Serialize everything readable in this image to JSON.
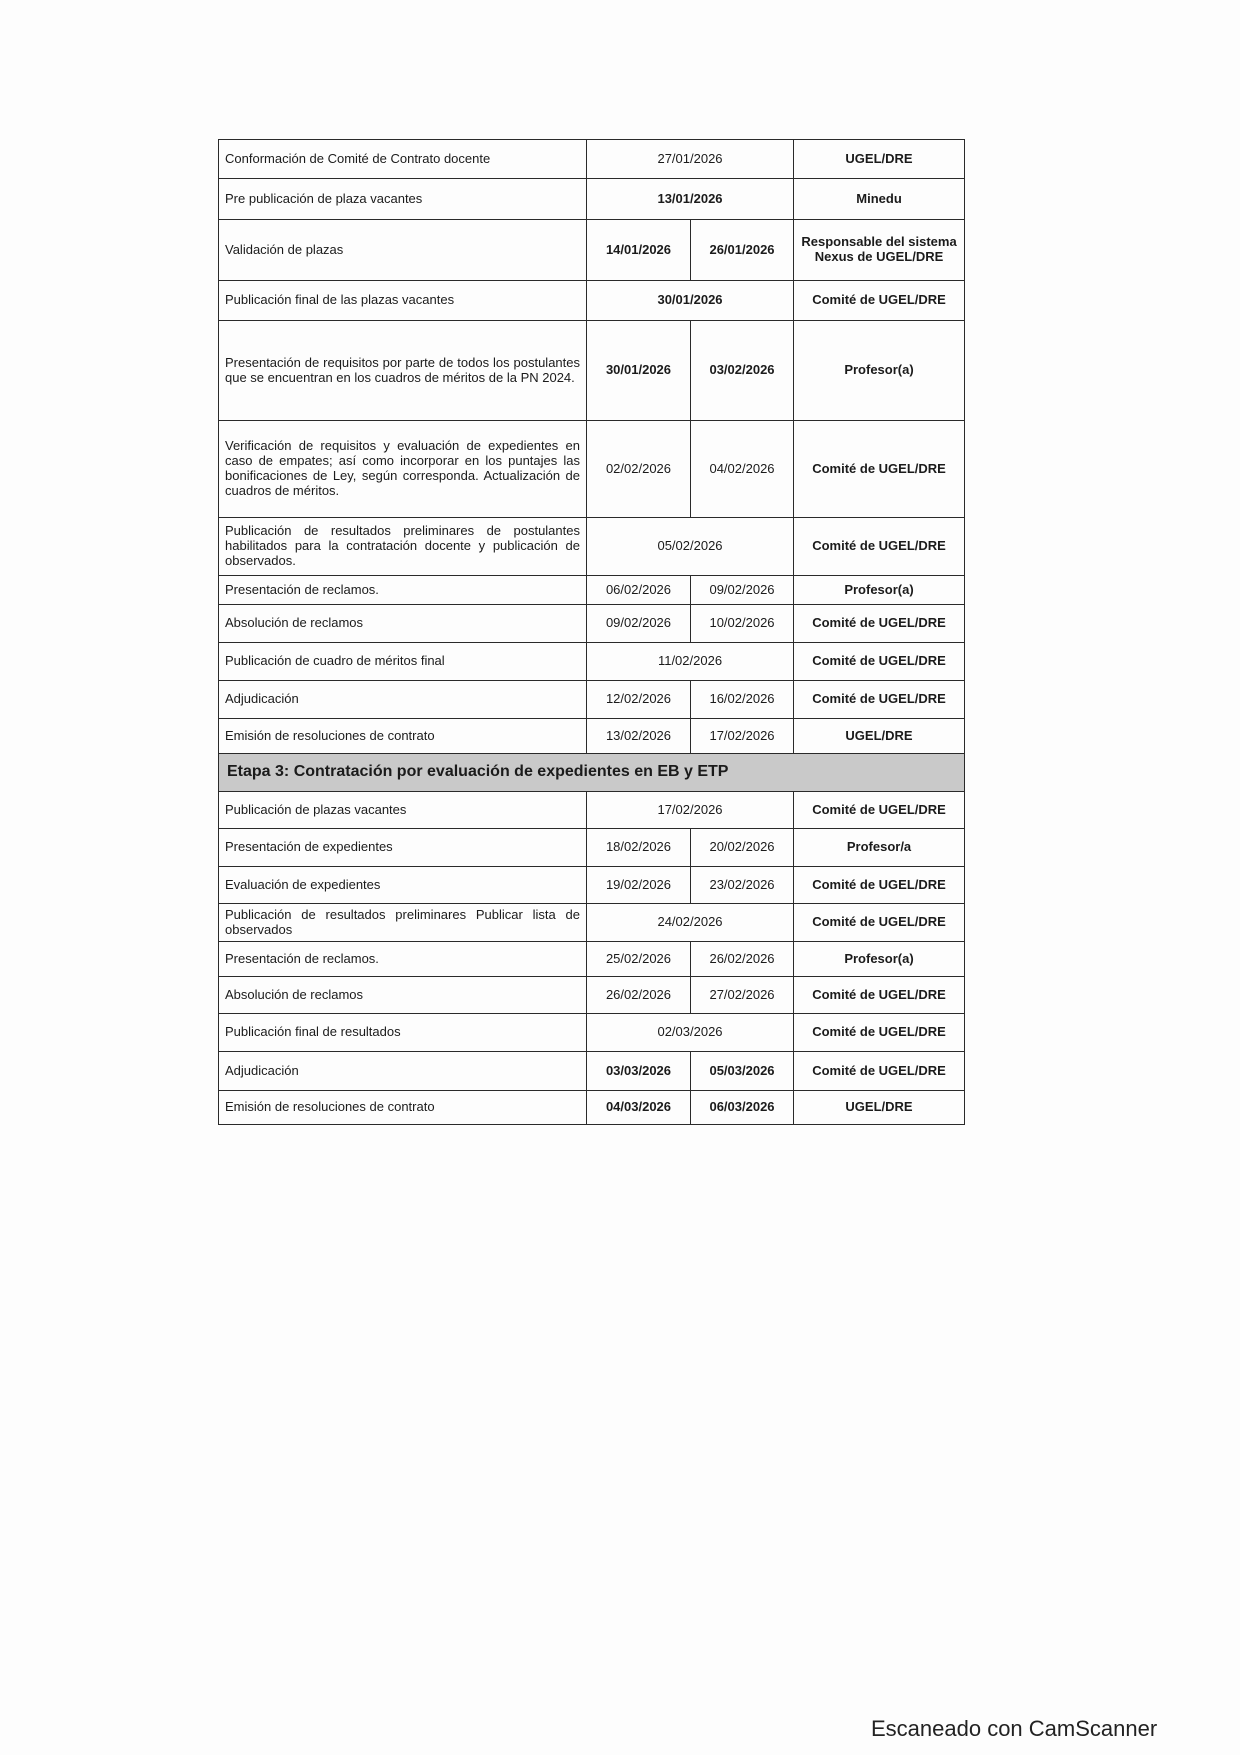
{
  "rows": [
    {
      "activity": "Conformación de Comité de Contrato docente",
      "dates": [
        "27/01/2026"
      ],
      "responsible": "UGEL/DRE"
    },
    {
      "activity": "Pre publicación de plaza vacantes",
      "dates": [
        "13/01/2026"
      ],
      "responsible": "Minedu",
      "bold": true
    },
    {
      "activity": "Validación de plazas",
      "dates": [
        "14/01/2026",
        "26/01/2026"
      ],
      "responsible": "Responsable del sistema Nexus de UGEL/DRE",
      "bold": true
    },
    {
      "activity": "Publicación final de las plazas vacantes",
      "dates": [
        "30/01/2026"
      ],
      "responsible": "Comité de UGEL/DRE",
      "bold": true
    },
    {
      "activity": "Presentación de requisitos por parte de todos los postulantes que se encuentran en los cuadros de méritos de la PN 2024.",
      "dates": [
        "30/01/2026",
        "03/02/2026"
      ],
      "responsible": "Profesor(a)",
      "bold": true
    },
    {
      "activity": "Verificación de requisitos y evaluación de expedientes en caso de empates; así como incorporar en los puntajes las bonificaciones de Ley, según corresponda. Actualización de cuadros de méritos.",
      "dates": [
        "02/02/2026",
        "04/02/2026"
      ],
      "responsible": "Comité de UGEL/DRE"
    },
    {
      "activity": "Publicación de resultados preliminares de postulantes habilitados para la contratación docente y publicación de observados.",
      "dates": [
        "05/02/2026"
      ],
      "responsible": "Comité de UGEL/DRE"
    },
    {
      "activity": "Presentación de reclamos.",
      "dates": [
        "06/02/2026",
        "09/02/2026"
      ],
      "responsible": "Profesor(a)"
    },
    {
      "activity": "Absolución de reclamos",
      "dates": [
        "09/02/2026",
        "10/02/2026"
      ],
      "responsible": "Comité de UGEL/DRE"
    },
    {
      "activity": "Publicación de cuadro de méritos final",
      "dates": [
        "11/02/2026"
      ],
      "responsible": "Comité de UGEL/DRE"
    },
    {
      "activity": "Adjudicación",
      "dates": [
        "12/02/2026",
        "16/02/2026"
      ],
      "responsible": "Comité de UGEL/DRE"
    },
    {
      "activity": "Emisión de resoluciones de contrato",
      "dates": [
        "13/02/2026",
        "17/02/2026"
      ],
      "responsible": "UGEL/DRE"
    },
    {
      "stage": "Etapa 3: Contratación por evaluación de expedientes en EB y ETP"
    },
    {
      "activity": "Publicación de plazas vacantes",
      "dates": [
        "17/02/2026"
      ],
      "responsible": "Comité de UGEL/DRE"
    },
    {
      "activity": "Presentación de expedientes",
      "dates": [
        "18/02/2026",
        "20/02/2026"
      ],
      "responsible": "Profesor/a"
    },
    {
      "activity": "Evaluación de expedientes",
      "dates": [
        "19/02/2026",
        "23/02/2026"
      ],
      "responsible": "Comité de UGEL/DRE"
    },
    {
      "activity": "Publicación de resultados preliminares Publicar lista de observados",
      "dates": [
        "24/02/2026"
      ],
      "responsible": "Comité de UGEL/DRE"
    },
    {
      "activity": "Presentación de reclamos.",
      "dates": [
        "25/02/2026",
        "26/02/2026"
      ],
      "responsible": "Profesor(a)"
    },
    {
      "activity": "Absolución de reclamos",
      "dates": [
        "26/02/2026",
        "27/02/2026"
      ],
      "responsible": "Comité de UGEL/DRE"
    },
    {
      "activity": "Publicación final de resultados",
      "dates": [
        "02/03/2026"
      ],
      "responsible": "Comité de UGEL/DRE"
    },
    {
      "activity": "Adjudicación",
      "dates": [
        "03/03/2026",
        "05/03/2026"
      ],
      "responsible": "Comité de UGEL/DRE",
      "bold": true
    },
    {
      "activity": "Emisión de resoluciones de contrato",
      "dates": [
        "04/03/2026",
        "06/03/2026"
      ],
      "responsible": "UGEL/DRE",
      "bold": true
    }
  ],
  "footer": "Escaneado con CamScanner"
}
